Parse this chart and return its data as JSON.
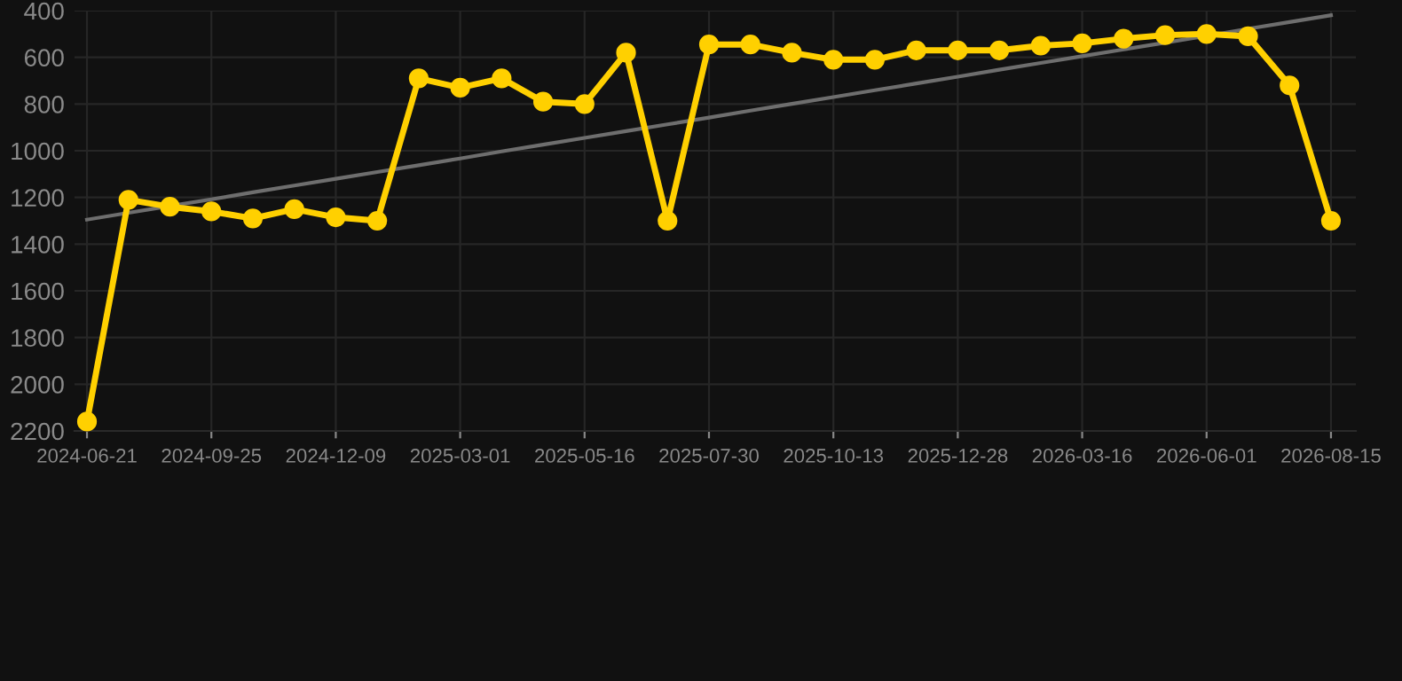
{
  "chart_data": {
    "type": "line",
    "categories": [
      "2024-06-21",
      null,
      null,
      "2024-09-25",
      null,
      null,
      "2024-12-09",
      null,
      null,
      "2025-03-01",
      null,
      null,
      "2025-05-16",
      null,
      null,
      "2025-07-30",
      null,
      null,
      "2025-10-13",
      null,
      null,
      "2025-12-28",
      null,
      null,
      "2026-03-16",
      null,
      null,
      "2026-06-01",
      null,
      null,
      "2026-08-15"
    ],
    "series": [
      {
        "color": "#ffd000",
        "marker": "circle",
        "values": [
          2160,
          1210,
          1240,
          1260,
          1290,
          1250,
          1285,
          1300,
          690,
          730,
          690,
          790,
          800,
          580,
          1300,
          545,
          545,
          580,
          610,
          610,
          570,
          570,
          570,
          550,
          540,
          520,
          505,
          500,
          510,
          720,
          1300
        ]
      },
      {
        "color": "#6e6e6e",
        "marker": "none",
        "values": [
          1295,
          1266,
          1237,
          1208,
          1178,
          1149,
          1120,
          1091,
          1062,
          1033,
          1003,
          974,
          945,
          916,
          887,
          858,
          828,
          799,
          770,
          741,
          712,
          683,
          653,
          624,
          595,
          566,
          537,
          508,
          478,
          449,
          420
        ]
      }
    ],
    "ylim": [
      2200,
      400
    ],
    "yticks": [
      400,
      600,
      800,
      1000,
      1200,
      1400,
      1600,
      1800,
      2000,
      2200
    ],
    "grid": true,
    "legend": false
  }
}
